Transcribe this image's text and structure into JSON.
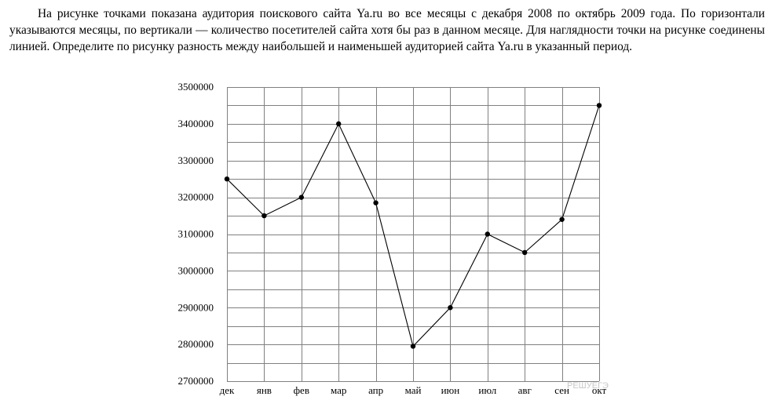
{
  "problem": {
    "text": "На рисунке точками показана аудитория поискового сайта Ya.ru во все месяцы с декабря 2008 по октябрь 2009 года. По горизонтали указываются месяцы, по вертикали — количество посетителей сайта хотя бы раз в данном месяце. Для наглядности точки на рисунке соединены линией. Определите по рисунку разность между наибольшей и наименьшей аудиторией сайта Ya.ru в указанный период."
  },
  "watermark": "РЕШУЕГЭ",
  "chart_data": {
    "type": "line",
    "title": "",
    "xlabel": "",
    "ylabel": "",
    "categories": [
      "дек",
      "янв",
      "фев",
      "мар",
      "апр",
      "май",
      "июн",
      "июл",
      "авг",
      "сен",
      "окт"
    ],
    "values": [
      3250000,
      3150000,
      3200000,
      3400000,
      3185000,
      2795000,
      2900000,
      3100000,
      3050000,
      3140000,
      3450000
    ],
    "ylim": [
      2700000,
      3500000
    ],
    "y_ticks": [
      2700000,
      2800000,
      2900000,
      3000000,
      3100000,
      3200000,
      3300000,
      3400000,
      3500000
    ],
    "y_minor_step": 50000,
    "grid": true,
    "line_color": "#000000",
    "marker_color": "#000000",
    "grid_color": "#808080"
  }
}
